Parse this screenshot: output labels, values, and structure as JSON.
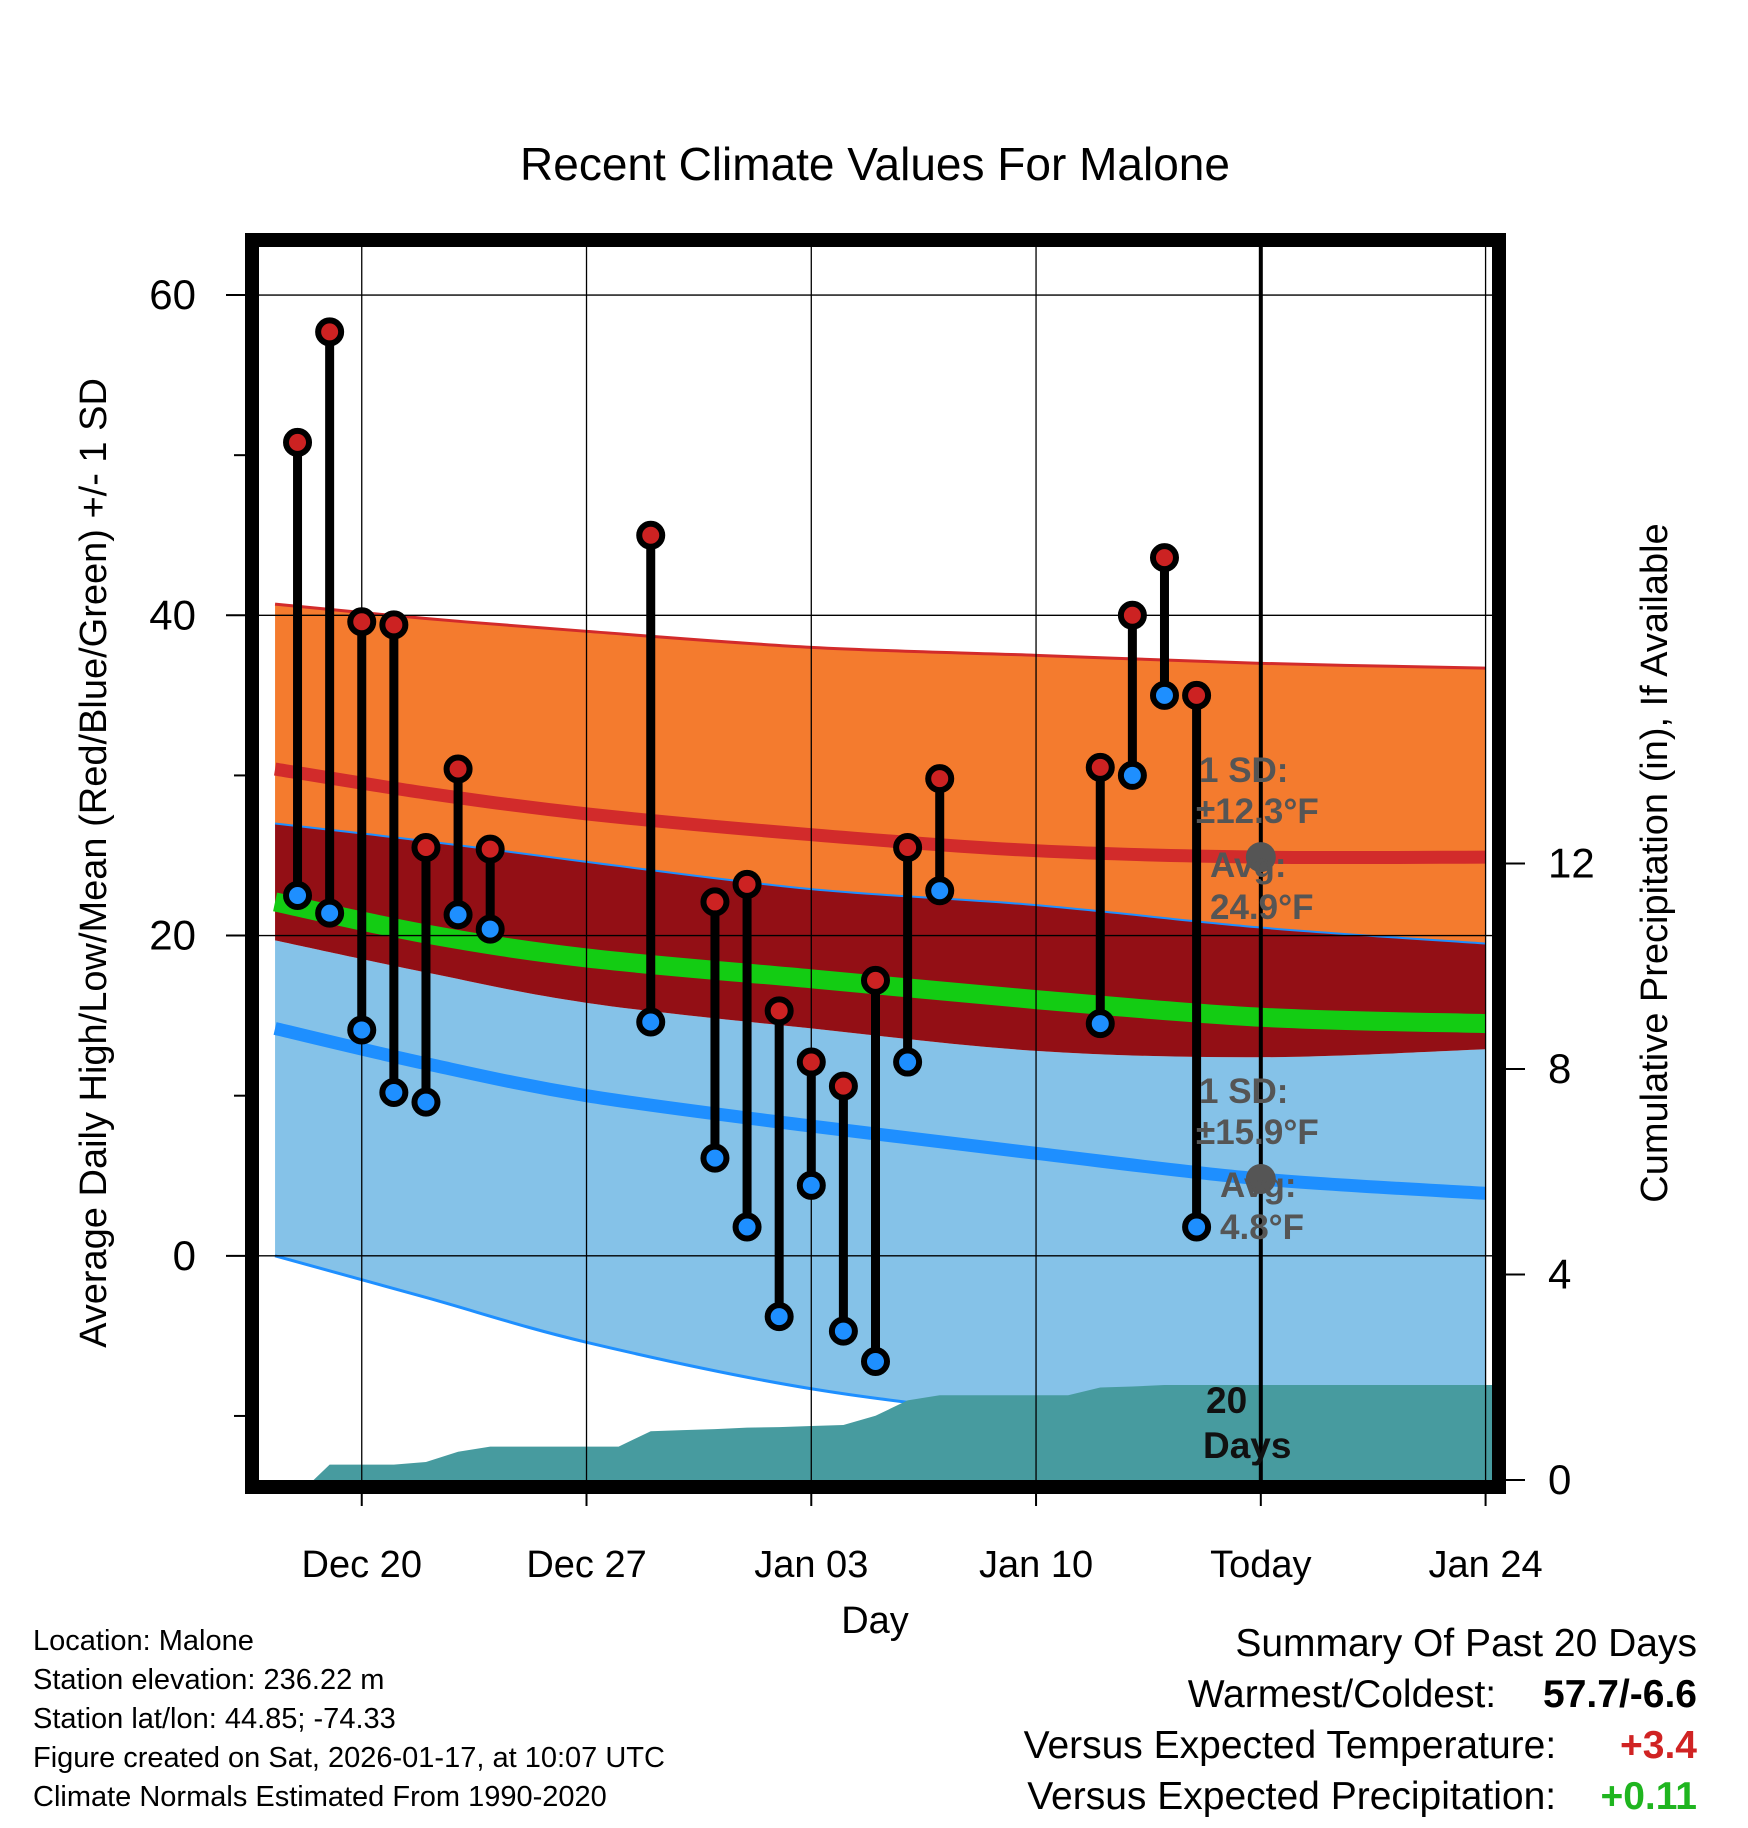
{
  "chart_data": {
    "type": "line",
    "title": "Recent Climate Values For Malone",
    "xlabel": "Day",
    "ylabel": "Average Daily High/Low/Mean (Red/Blue/Green) +/- 1 SD",
    "y2label": "Cumulative Precipitation (in), If Available",
    "xlim": [
      -3.2,
      35.2
    ],
    "ylim": [
      -14,
      63
    ],
    "y2lim": [
      0,
      24
    ],
    "x_ticks": [
      {
        "x": 0,
        "label": "Dec 20"
      },
      {
        "x": 7,
        "label": "Dec 27"
      },
      {
        "x": 14,
        "label": "Jan 03"
      },
      {
        "x": 21,
        "label": "Jan 10"
      },
      {
        "x": 28,
        "label": "Today"
      },
      {
        "x": 35,
        "label": "Jan 24"
      }
    ],
    "y_ticks": [
      0,
      20,
      40,
      60
    ],
    "y_minor_ticks": [
      -10,
      10,
      30,
      50
    ],
    "y2_ticks": [
      0,
      4,
      8,
      12
    ],
    "grid": true,
    "normals_x": [
      -2.7,
      2,
      7,
      14,
      21,
      28,
      35
    ],
    "normal_high": {
      "mean": [
        30.4,
        28.9,
        27.6,
        26.3,
        25.3,
        24.9,
        24.9
      ],
      "upper": [
        40.7,
        39.8,
        39.0,
        38.0,
        37.5,
        37.0,
        36.7
      ],
      "lower": [
        27.0,
        25.9,
        24.6,
        22.9,
        21.9,
        20.5,
        19.5
      ]
    },
    "normal_low": {
      "mean": [
        14.2,
        12.0,
        10.0,
        8.1,
        6.4,
        4.8,
        3.9
      ],
      "upper": [
        19.7,
        17.7,
        15.8,
        14.2,
        12.8,
        12.4,
        12.9
      ],
      "lower": [
        0.0,
        -2.6,
        -5.4,
        -8.3,
        -10.0,
        -11.0,
        -11.5
      ]
    },
    "normal_mean": [
      22.1,
      20.1,
      18.6,
      17.3,
      16.0,
      14.9,
      14.5
    ],
    "observations": [
      {
        "x": -2,
        "high": 50.8,
        "low": 22.5
      },
      {
        "x": -1,
        "high": 57.7,
        "low": 21.4
      },
      {
        "x": 0,
        "high": 39.6,
        "low": 14.1
      },
      {
        "x": 1,
        "high": 39.4,
        "low": 10.2
      },
      {
        "x": 2,
        "high": 25.5,
        "low": 9.6
      },
      {
        "x": 3,
        "high": 30.4,
        "low": 21.3
      },
      {
        "x": 4,
        "high": 25.4,
        "low": 20.4
      },
      {
        "x": 9,
        "high": 45.0,
        "low": 14.6
      },
      {
        "x": 11,
        "high": 22.1,
        "low": 6.1
      },
      {
        "x": 12,
        "high": 23.2,
        "low": 1.8
      },
      {
        "x": 13,
        "high": 15.3,
        "low": -3.8
      },
      {
        "x": 14,
        "high": 12.1,
        "low": 4.4
      },
      {
        "x": 15,
        "high": 10.6,
        "low": -4.7
      },
      {
        "x": 16,
        "high": 17.2,
        "low": -6.6
      },
      {
        "x": 17,
        "high": 25.5,
        "low": 12.1
      },
      {
        "x": 18,
        "high": 29.8,
        "low": 22.8
      },
      {
        "x": 23,
        "high": 30.5,
        "low": 14.5
      },
      {
        "x": 24,
        "high": 40.0,
        "low": 30.0
      },
      {
        "x": 25,
        "high": 43.6,
        "low": 35.0
      },
      {
        "x": 26,
        "high": 35.0,
        "low": 1.8
      }
    ],
    "precipitation": {
      "x": [
        -1.5,
        -1,
        0,
        1,
        2,
        3,
        4,
        5,
        6,
        7,
        8,
        9,
        10,
        11,
        12,
        13,
        14,
        15,
        16,
        17,
        18,
        19,
        20,
        21,
        22,
        23,
        24,
        25,
        26,
        27,
        28,
        29,
        30,
        31,
        32,
        33,
        34,
        35.2
      ],
      "y": [
        0,
        0.3,
        0.3,
        0.3,
        0.35,
        0.55,
        0.65,
        0.65,
        0.65,
        0.65,
        0.65,
        0.95,
        0.97,
        0.99,
        1.02,
        1.03,
        1.05,
        1.07,
        1.25,
        1.55,
        1.65,
        1.65,
        1.65,
        1.65,
        1.65,
        1.8,
        1.82,
        1.85,
        1.85,
        1.85,
        1.85,
        1.85,
        1.85,
        1.85,
        1.85,
        1.85,
        1.85,
        1.85
      ]
    },
    "today_x": 28,
    "annotations": {
      "high_sd_line1": "1 SD:",
      "high_sd_line2": "±12.3°F",
      "high_avg_line1": "Avg:",
      "high_avg_line2": "24.9°F",
      "low_sd_line1": "1 SD:",
      "low_sd_line2": "±15.9°F",
      "low_avg_line1": "Avg:",
      "low_avg_line2": "4.8°F",
      "days_line1": "20",
      "days_line2": "Days"
    },
    "colors": {
      "high_band": "#f47b2e",
      "high_line": "#d22b2b",
      "overlap_band": "#930f15",
      "mean_line": "#13cc13",
      "low_band": "#85c2e8",
      "low_line": "#1e8fff",
      "precip": "#479b9f",
      "high_dot": "#cc2222",
      "low_dot": "#1e8fff",
      "annotation": "#555555"
    }
  },
  "info": {
    "location": "Location: Malone",
    "elevation": "Station elevation: 236.22 m",
    "latlon": "Station lat/lon: 44.85; -74.33",
    "created": "Figure created on Sat, 2026-01-17, at 10:07 UTC",
    "normals": "Climate Normals Estimated From 1990-2020"
  },
  "summary": {
    "title": "Summary Of Past 20 Days",
    "warm_cold_label": "Warmest/Coldest:",
    "warm_cold_value": "57.7/-6.6",
    "temp_label": "Versus Expected Temperature:",
    "temp_value": "+3.4",
    "temp_color": "#d02323",
    "precip_label": "Versus Expected Precipitation:",
    "precip_value": "+0.11",
    "precip_color": "#1fb51f"
  }
}
